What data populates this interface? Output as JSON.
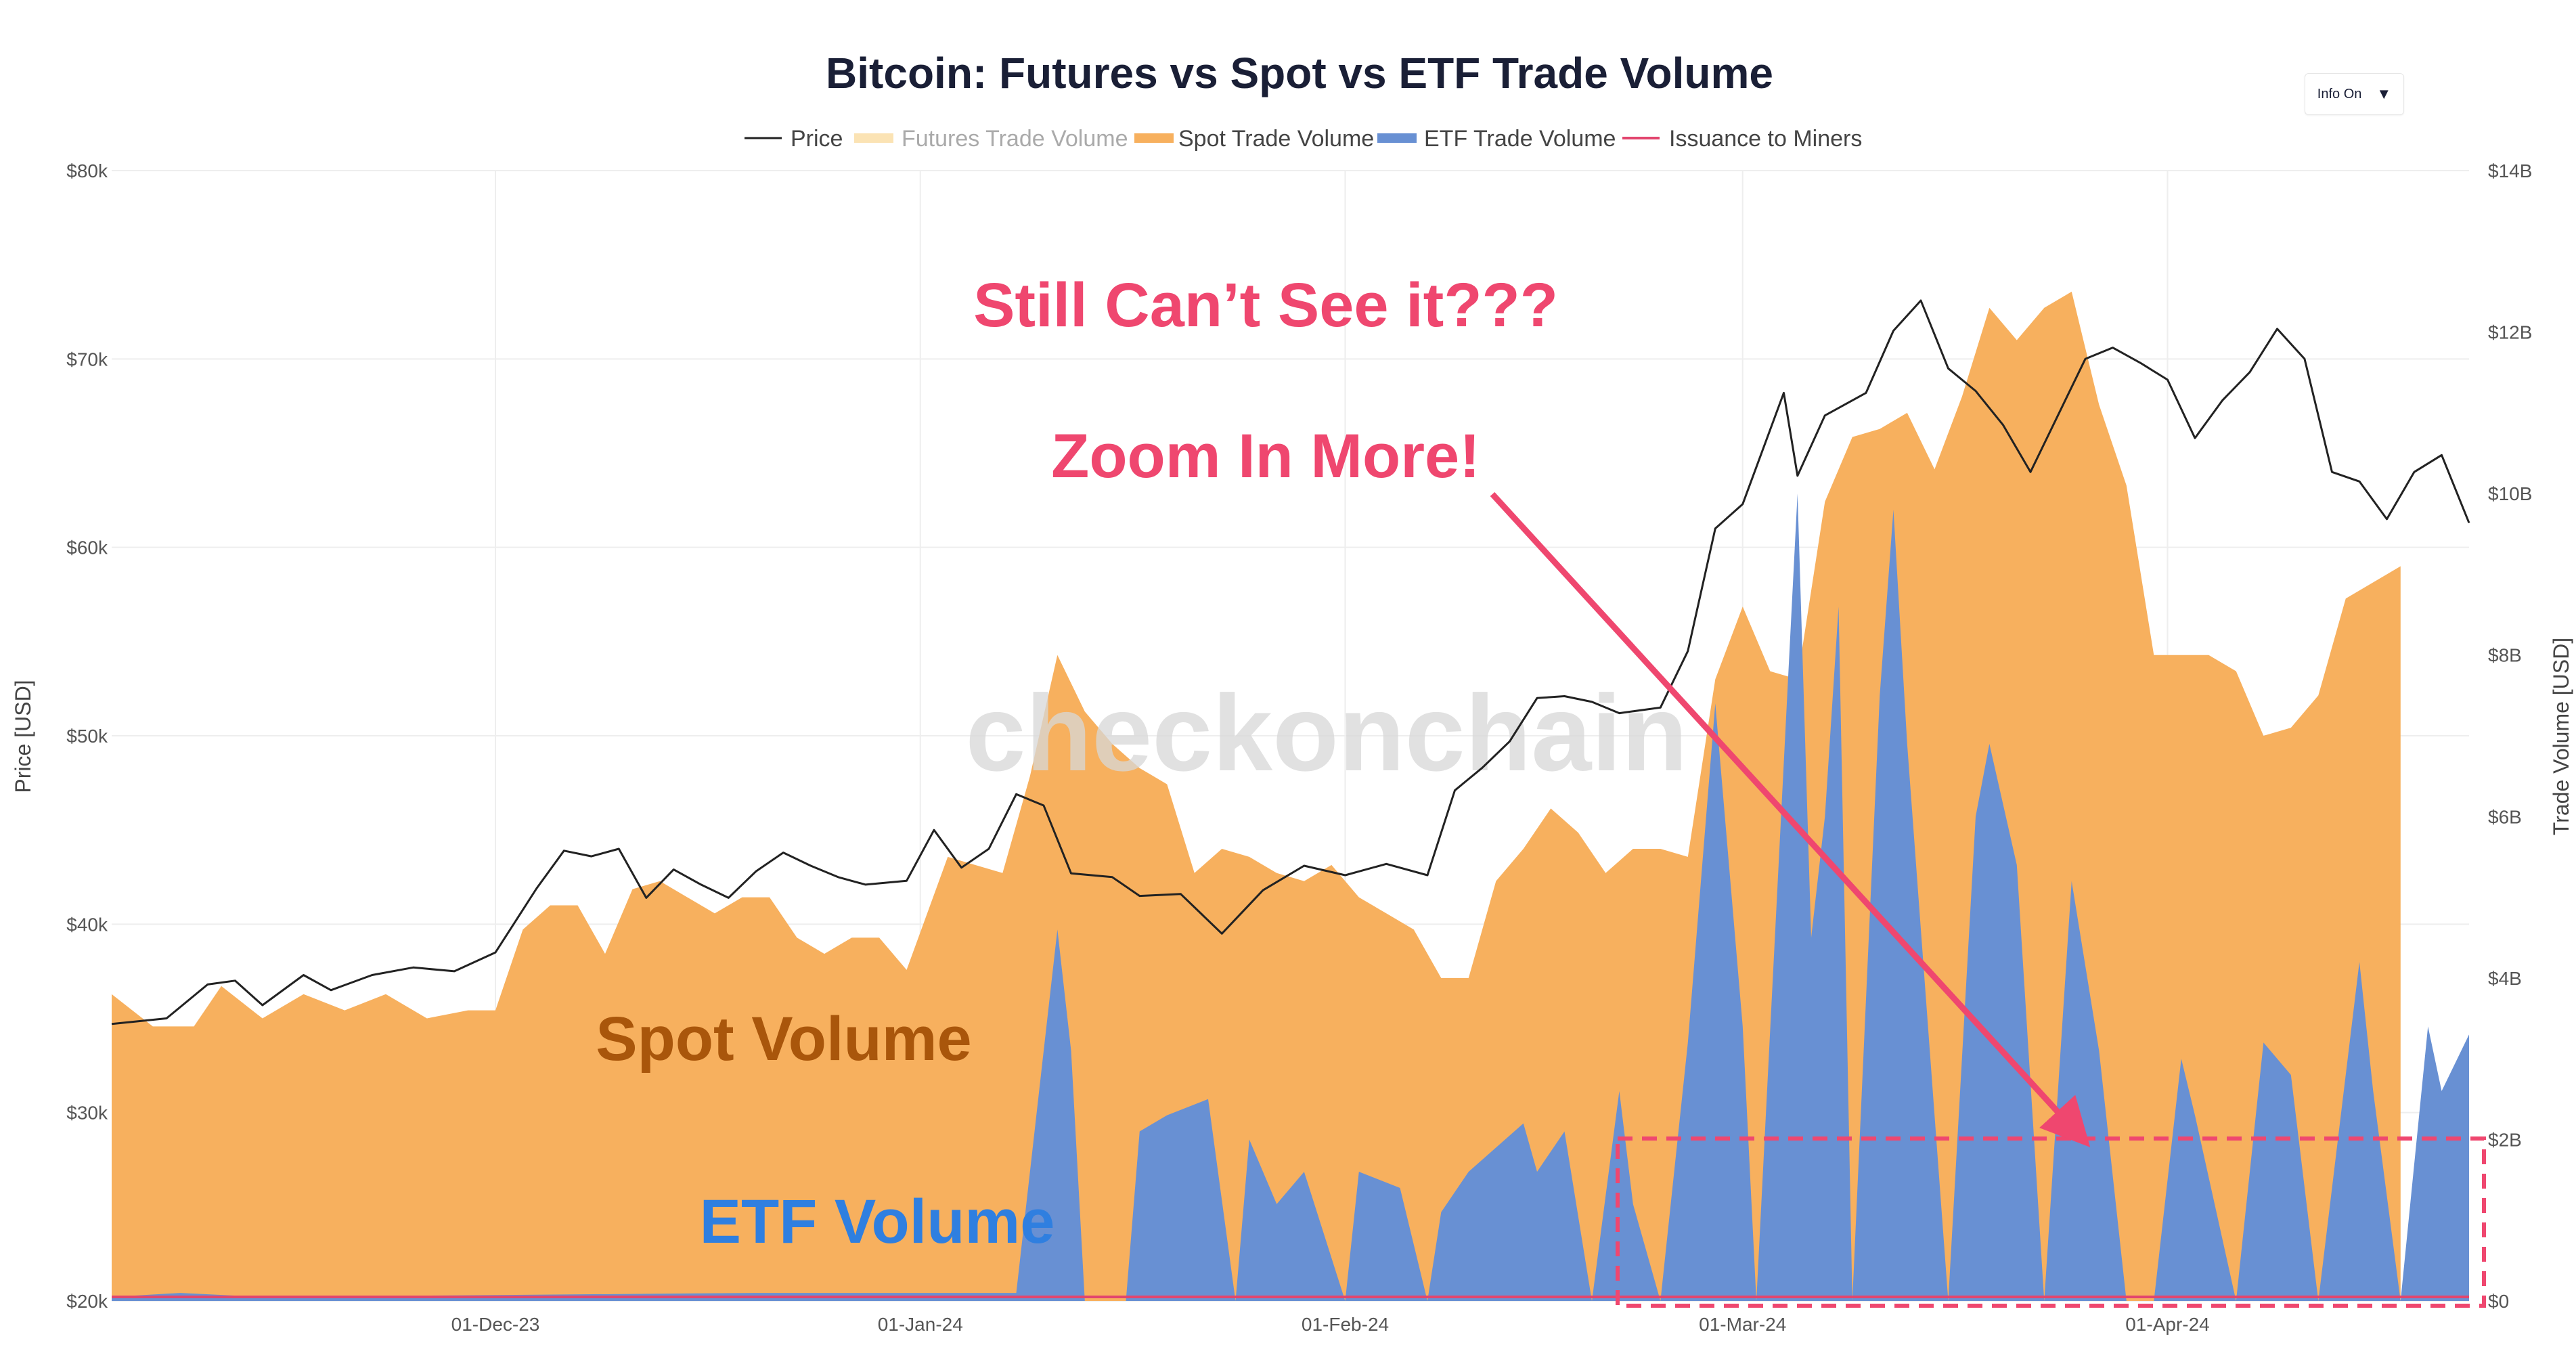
{
  "info_button": {
    "label": "Info On",
    "arrow": "▼"
  },
  "watermark": "checkonchain",
  "annotations": {
    "still_cant_see": "Still Can’t See it???",
    "zoom_in_more": "Zoom In More!",
    "spot_volume": "Spot Volume",
    "etf_volume": "ETF Volume"
  },
  "colors": {
    "price": "#222222",
    "futures": "#fbe3b4",
    "spot": "#f7b05e",
    "etf": "#6890d3",
    "issuance": "#e2456e",
    "annotation_pink": "#ef476f",
    "annotation_brown": "#a9560b",
    "annotation_blue": "#2f7fe0"
  },
  "chart_data": {
    "type": "area",
    "title": "Bitcoin: Futures vs Spot vs ETF Trade Volume",
    "legend": [
      {
        "name": "Price",
        "style": "line",
        "color": "#222222",
        "visible": true
      },
      {
        "name": "Futures Trade Volume",
        "style": "band",
        "color": "#fbe3b4",
        "visible": false
      },
      {
        "name": "Spot Trade Volume",
        "style": "band",
        "color": "#f7b05e",
        "visible": true
      },
      {
        "name": "ETF Trade Volume",
        "style": "band",
        "color": "#6890d3",
        "visible": true
      },
      {
        "name": "Issuance to Miners",
        "style": "line",
        "color": "#e2456e",
        "visible": true
      }
    ],
    "legend_position": "top-center",
    "grid": true,
    "x_range": [
      "2023-11-03",
      "2024-04-23"
    ],
    "x_ticks": [
      {
        "date": "2023-12-01",
        "label": "01-Dec-23"
      },
      {
        "date": "2024-01-01",
        "label": "01-Jan-24"
      },
      {
        "date": "2024-02-01",
        "label": "01-Feb-24"
      },
      {
        "date": "2024-03-01",
        "label": "01-Mar-24"
      },
      {
        "date": "2024-04-01",
        "label": "01-Apr-24"
      }
    ],
    "y_left": {
      "label": "Price [USD]",
      "range": [
        20000,
        80000
      ],
      "ticks": [
        {
          "value": 20000,
          "label": "$20k"
        },
        {
          "value": 30000,
          "label": "$30k"
        },
        {
          "value": 40000,
          "label": "$40k"
        },
        {
          "value": 50000,
          "label": "$50k"
        },
        {
          "value": 60000,
          "label": "$60k"
        },
        {
          "value": 70000,
          "label": "$70k"
        },
        {
          "value": 80000,
          "label": "$80k"
        }
      ]
    },
    "y_right": {
      "label": "Trade Volume [USD]",
      "range": [
        0,
        14000000000
      ],
      "ticks": [
        {
          "value": 0,
          "label": "$0"
        },
        {
          "value": 2000000000,
          "label": "$2B"
        },
        {
          "value": 4000000000,
          "label": "$4B"
        },
        {
          "value": 6000000000,
          "label": "$6B"
        },
        {
          "value": 8000000000,
          "label": "$8B"
        },
        {
          "value": 10000000000,
          "label": "$10B"
        },
        {
          "value": 12000000000,
          "label": "$12B"
        },
        {
          "value": 14000000000,
          "label": "$14B"
        }
      ]
    },
    "spot_volume_b": [
      [
        "2023-11-03",
        3.8
      ],
      [
        "2023-11-06",
        3.4
      ],
      [
        "2023-11-09",
        3.4
      ],
      [
        "2023-11-11",
        3.9
      ],
      [
        "2023-11-14",
        3.5
      ],
      [
        "2023-11-17",
        3.8
      ],
      [
        "2023-11-20",
        3.6
      ],
      [
        "2023-11-23",
        3.8
      ],
      [
        "2023-11-26",
        3.5
      ],
      [
        "2023-11-29",
        3.6
      ],
      [
        "2023-12-01",
        3.6
      ],
      [
        "2023-12-03",
        4.6
      ],
      [
        "2023-12-05",
        4.9
      ],
      [
        "2023-12-07",
        4.9
      ],
      [
        "2023-12-09",
        4.3
      ],
      [
        "2023-12-11",
        5.1
      ],
      [
        "2023-12-13",
        5.2
      ],
      [
        "2023-12-15",
        5.0
      ],
      [
        "2023-12-17",
        4.8
      ],
      [
        "2023-12-19",
        5.0
      ],
      [
        "2023-12-21",
        5.0
      ],
      [
        "2023-12-23",
        4.5
      ],
      [
        "2023-12-25",
        4.3
      ],
      [
        "2023-12-27",
        4.5
      ],
      [
        "2023-12-29",
        4.5
      ],
      [
        "2023-12-31",
        4.1
      ],
      [
        "2024-01-03",
        5.5
      ],
      [
        "2024-01-05",
        5.4
      ],
      [
        "2024-01-07",
        5.3
      ],
      [
        "2024-01-09",
        6.5
      ],
      [
        "2024-01-11",
        8.0
      ],
      [
        "2024-01-13",
        7.3
      ],
      [
        "2024-01-15",
        6.9
      ],
      [
        "2024-01-17",
        6.6
      ],
      [
        "2024-01-19",
        6.4
      ],
      [
        "2024-01-21",
        5.3
      ],
      [
        "2024-01-23",
        5.6
      ],
      [
        "2024-01-25",
        5.5
      ],
      [
        "2024-01-27",
        5.3
      ],
      [
        "2024-01-29",
        5.2
      ],
      [
        "2024-01-31",
        5.4
      ],
      [
        "2024-02-02",
        5.0
      ],
      [
        "2024-02-04",
        4.8
      ],
      [
        "2024-02-06",
        4.6
      ],
      [
        "2024-02-08",
        4.0
      ],
      [
        "2024-02-10",
        4.0
      ],
      [
        "2024-02-12",
        5.2
      ],
      [
        "2024-02-14",
        5.6
      ],
      [
        "2024-02-16",
        6.1
      ],
      [
        "2024-02-18",
        5.8
      ],
      [
        "2024-02-20",
        5.3
      ],
      [
        "2024-02-22",
        5.6
      ],
      [
        "2024-02-24",
        5.6
      ],
      [
        "2024-02-26",
        5.5
      ],
      [
        "2024-02-28",
        7.7
      ],
      [
        "2024-03-01",
        8.6
      ],
      [
        "2024-03-03",
        7.8
      ],
      [
        "2024-03-05",
        7.7
      ],
      [
        "2024-03-07",
        9.9
      ],
      [
        "2024-03-09",
        10.7
      ],
      [
        "2024-03-11",
        10.8
      ],
      [
        "2024-03-13",
        11.0
      ],
      [
        "2024-03-15",
        10.3
      ],
      [
        "2024-03-17",
        11.2
      ],
      [
        "2024-03-19",
        12.3
      ],
      [
        "2024-03-21",
        11.9
      ],
      [
        "2024-03-23",
        12.3
      ],
      [
        "2024-03-25",
        12.5
      ],
      [
        "2024-03-27",
        11.1
      ],
      [
        "2024-03-29",
        10.1
      ],
      [
        "2024-03-31",
        8.0
      ],
      [
        "2024-04-02",
        8.0
      ],
      [
        "2024-04-04",
        8.0
      ],
      [
        "2024-04-06",
        7.8
      ],
      [
        "2024-04-08",
        7.0
      ],
      [
        "2024-04-10",
        7.1
      ],
      [
        "2024-04-12",
        7.5
      ],
      [
        "2024-04-14",
        8.7
      ],
      [
        "2024-04-16",
        8.9
      ],
      [
        "2024-04-18",
        9.1
      ]
    ],
    "etf_volume_b": [
      [
        "2023-11-03",
        0.05
      ],
      [
        "2023-11-08",
        0.1
      ],
      [
        "2023-11-14",
        0.05
      ],
      [
        "2023-12-20",
        0.1
      ],
      [
        "2024-01-08",
        0.1
      ],
      [
        "2024-01-11",
        4.6
      ],
      [
        "2024-01-12",
        3.1
      ],
      [
        "2024-01-13",
        0.0
      ],
      [
        "2024-01-16",
        0.0
      ],
      [
        "2024-01-17",
        2.1
      ],
      [
        "2024-01-19",
        2.3
      ],
      [
        "2024-01-22",
        2.5
      ],
      [
        "2024-01-24",
        0.0
      ],
      [
        "2024-01-25",
        2.0
      ],
      [
        "2024-01-27",
        1.2
      ],
      [
        "2024-01-29",
        1.6
      ],
      [
        "2024-02-01",
        0.0
      ],
      [
        "2024-02-02",
        1.6
      ],
      [
        "2024-02-05",
        1.4
      ],
      [
        "2024-02-07",
        0.0
      ],
      [
        "2024-02-08",
        1.1
      ],
      [
        "2024-02-10",
        1.6
      ],
      [
        "2024-02-12",
        1.9
      ],
      [
        "2024-02-14",
        2.2
      ],
      [
        "2024-02-15",
        1.6
      ],
      [
        "2024-02-17",
        2.1
      ],
      [
        "2024-02-19",
        0.0
      ],
      [
        "2024-02-21",
        2.6
      ],
      [
        "2024-02-22",
        1.2
      ],
      [
        "2024-02-24",
        0.0
      ],
      [
        "2024-02-26",
        3.2
      ],
      [
        "2024-02-28",
        7.4
      ],
      [
        "2024-03-01",
        3.4
      ],
      [
        "2024-03-02",
        0.0
      ],
      [
        "2024-03-05",
        10.0
      ],
      [
        "2024-03-06",
        4.5
      ],
      [
        "2024-03-07",
        6.0
      ],
      [
        "2024-03-08",
        8.6
      ],
      [
        "2024-03-09",
        0.0
      ],
      [
        "2024-03-11",
        7.5
      ],
      [
        "2024-03-12",
        9.8
      ],
      [
        "2024-03-13",
        6.9
      ],
      [
        "2024-03-16",
        0.0
      ],
      [
        "2024-03-18",
        6.0
      ],
      [
        "2024-03-19",
        6.9
      ],
      [
        "2024-03-21",
        5.4
      ],
      [
        "2024-03-23",
        0.0
      ],
      [
        "2024-03-25",
        5.2
      ],
      [
        "2024-03-27",
        3.1
      ],
      [
        "2024-03-29",
        0.0
      ],
      [
        "2024-03-31",
        0.0
      ],
      [
        "2024-04-02",
        3.0
      ],
      [
        "2024-04-03",
        2.3
      ],
      [
        "2024-04-06",
        0.0
      ],
      [
        "2024-04-08",
        3.2
      ],
      [
        "2024-04-10",
        2.8
      ],
      [
        "2024-04-12",
        0.0
      ],
      [
        "2024-04-15",
        4.2
      ],
      [
        "2024-04-16",
        2.6
      ],
      [
        "2024-04-18",
        0.0
      ],
      [
        "2024-04-20",
        3.4
      ],
      [
        "2024-04-21",
        2.6
      ],
      [
        "2024-04-23",
        3.3
      ]
    ],
    "price_usd": [
      [
        "2023-11-03",
        34700
      ],
      [
        "2023-11-07",
        35000
      ],
      [
        "2023-11-10",
        36800
      ],
      [
        "2023-11-12",
        37000
      ],
      [
        "2023-11-14",
        35700
      ],
      [
        "2023-11-17",
        37300
      ],
      [
        "2023-11-19",
        36500
      ],
      [
        "2023-11-22",
        37300
      ],
      [
        "2023-11-25",
        37700
      ],
      [
        "2023-11-28",
        37500
      ],
      [
        "2023-12-01",
        38500
      ],
      [
        "2023-12-04",
        41900
      ],
      [
        "2023-12-06",
        43900
      ],
      [
        "2023-12-08",
        43600
      ],
      [
        "2023-12-10",
        44000
      ],
      [
        "2023-12-12",
        41400
      ],
      [
        "2023-12-14",
        42900
      ],
      [
        "2023-12-16",
        42100
      ],
      [
        "2023-12-18",
        41400
      ],
      [
        "2023-12-20",
        42800
      ],
      [
        "2023-12-22",
        43800
      ],
      [
        "2023-12-24",
        43100
      ],
      [
        "2023-12-26",
        42500
      ],
      [
        "2023-12-28",
        42100
      ],
      [
        "2023-12-31",
        42300
      ],
      [
        "2024-01-02",
        45000
      ],
      [
        "2024-01-04",
        43000
      ],
      [
        "2024-01-06",
        44000
      ],
      [
        "2024-01-08",
        46900
      ],
      [
        "2024-01-10",
        46300
      ],
      [
        "2024-01-12",
        42700
      ],
      [
        "2024-01-15",
        42500
      ],
      [
        "2024-01-17",
        41500
      ],
      [
        "2024-01-20",
        41600
      ],
      [
        "2024-01-23",
        39500
      ],
      [
        "2024-01-26",
        41800
      ],
      [
        "2024-01-29",
        43100
      ],
      [
        "2024-02-01",
        42600
      ],
      [
        "2024-02-04",
        43200
      ],
      [
        "2024-02-07",
        42600
      ],
      [
        "2024-02-09",
        47100
      ],
      [
        "2024-02-11",
        48300
      ],
      [
        "2024-02-13",
        49700
      ],
      [
        "2024-02-15",
        52000
      ],
      [
        "2024-02-17",
        52100
      ],
      [
        "2024-02-19",
        51800
      ],
      [
        "2024-02-21",
        51200
      ],
      [
        "2024-02-24",
        51500
      ],
      [
        "2024-02-26",
        54500
      ],
      [
        "2024-02-28",
        61000
      ],
      [
        "2024-03-01",
        62300
      ],
      [
        "2024-03-04",
        68200
      ],
      [
        "2024-03-05",
        63800
      ],
      [
        "2024-03-07",
        67000
      ],
      [
        "2024-03-10",
        68200
      ],
      [
        "2024-03-12",
        71500
      ],
      [
        "2024-03-14",
        73100
      ],
      [
        "2024-03-16",
        69500
      ],
      [
        "2024-03-18",
        68300
      ],
      [
        "2024-03-20",
        66500
      ],
      [
        "2024-03-22",
        64000
      ],
      [
        "2024-03-24",
        67000
      ],
      [
        "2024-03-26",
        70000
      ],
      [
        "2024-03-28",
        70600
      ],
      [
        "2024-03-30",
        69800
      ],
      [
        "2024-04-01",
        68900
      ],
      [
        "2024-04-03",
        65800
      ],
      [
        "2024-04-05",
        67800
      ],
      [
        "2024-04-07",
        69300
      ],
      [
        "2024-04-09",
        71600
      ],
      [
        "2024-04-11",
        70000
      ],
      [
        "2024-04-13",
        64000
      ],
      [
        "2024-04-15",
        63500
      ],
      [
        "2024-04-17",
        61500
      ],
      [
        "2024-04-19",
        64000
      ],
      [
        "2024-04-21",
        64900
      ],
      [
        "2024-04-23",
        61300
      ]
    ],
    "issuance_b": [
      [
        "2023-11-03",
        0.05
      ],
      [
        "2024-04-23",
        0.05
      ]
    ]
  }
}
